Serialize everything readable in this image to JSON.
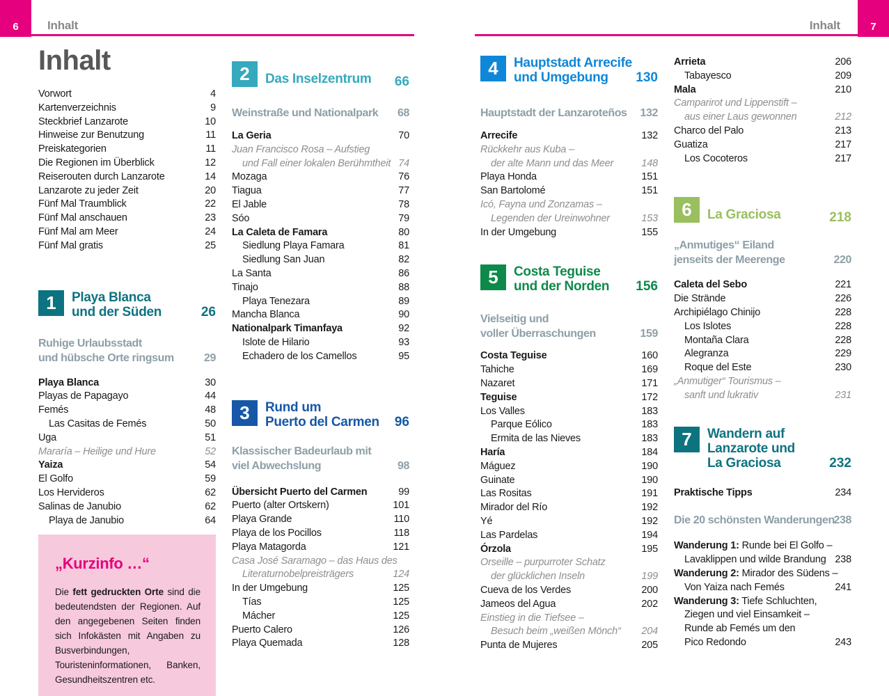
{
  "colors": {
    "brand_pink": "#e5007d",
    "infobox_pink": "#f7c9dc",
    "teal": "#0e7380",
    "cyan": "#36a9bd",
    "royal_blue": "#1658a7",
    "bright_blue": "#0f87d8",
    "green": "#0d8a4a",
    "lime": "#99bf5e",
    "subtitle_gray": "#8d9fa7",
    "italic_gray": "#8e8e8e"
  },
  "header_left": {
    "page_number": "6",
    "label": "Inhalt"
  },
  "header_right": {
    "page_number": "7",
    "label": "Inhalt"
  },
  "page_title": "Inhalt",
  "columns": [
    {
      "blocks": [
        {
          "type": "entries",
          "mt": 17,
          "items": [
            {
              "label": "Vorwort",
              "page": "4"
            },
            {
              "label": "Kartenverzeichnis",
              "page": "9"
            },
            {
              "label": "Steckbrief Lanzarote",
              "page": "10"
            },
            {
              "label": "Hinweise zur Benutzung",
              "page": "11"
            },
            {
              "label": "Preiskategorien",
              "page": "11"
            },
            {
              "label": "Die Regionen im Überblick",
              "page": "12"
            },
            {
              "label": "Reiserouten durch Lanzarote",
              "page": "14"
            },
            {
              "label": "Lanzarote zu jeder Zeit",
              "page": "20"
            },
            {
              "label": "Fünf Mal Traumblick",
              "page": "22"
            },
            {
              "label": "Fünf Mal anschauen",
              "page": "23"
            },
            {
              "label": "Fünf Mal am Meer",
              "page": "24"
            },
            {
              "label": "Fünf Mal gratis",
              "page": "25"
            }
          ]
        },
        {
          "type": "section",
          "mt": 53,
          "num": "1",
          "color": "#0e7380",
          "lines": [
            "Playa Blanca",
            "und der Süden"
          ],
          "page": "26"
        },
        {
          "type": "subtitle",
          "mt": 24,
          "lines": [
            "Ruhige Urlaubsstadt",
            "und hübsche Orte ringsum"
          ],
          "page": "29"
        },
        {
          "type": "entries",
          "mt": 16,
          "items": [
            {
              "label": "Playa Blanca",
              "page": "30",
              "bold": true
            },
            {
              "label": "Playas de Papagayo",
              "page": "44"
            },
            {
              "label": "Femés",
              "page": "48"
            },
            {
              "label": "Las Casitas de Femés",
              "page": "50",
              "indent": true
            },
            {
              "label": "Uga",
              "page": "51"
            },
            {
              "label": "Mararía – Heilige und Hure",
              "page": "52",
              "italic": true
            },
            {
              "label": "Yaiza",
              "page": "54",
              "bold": true
            },
            {
              "label": "El Golfo",
              "page": "59"
            },
            {
              "label": "Los Hervideros",
              "page": "62"
            },
            {
              "label": "Salinas de Janubio",
              "page": "62"
            },
            {
              "label": "Playa de Janubio",
              "page": "64",
              "indent": true
            }
          ]
        },
        {
          "type": "infobox",
          "mt": 10,
          "title": "„Kurzinfo …“",
          "body": [
            {
              "text": "Die "
            },
            {
              "text": "fett gedruckten Orte",
              "bold": true
            },
            {
              "text": " sind die bedeutendsten der Regionen. Auf den angegebenen Seiten finden sich Infokästen mit Angaben zu Busverbindungen, Touristeninformationen, Banken, Gesundheitszentren etc."
            }
          ]
        }
      ]
    },
    {
      "blocks": [
        {
          "type": "section",
          "mt": 33,
          "num": "2",
          "color": "#36a9bd",
          "lines": [
            "Das Inselzentrum"
          ],
          "page": "66"
        },
        {
          "type": "subtitle",
          "mt": 24,
          "lines": [
            "Weinstraße und Nationalpark"
          ],
          "page": "68"
        },
        {
          "type": "entries",
          "mt": 13,
          "items": [
            {
              "label": "La Geria",
              "page": "70",
              "bold": true
            },
            {
              "label": "Juan Francisco Rosa – Aufstieg",
              "italic": true
            },
            {
              "label": "und Fall einer lokalen Berühmtheit",
              "page": "74",
              "italic": true,
              "indent": true
            },
            {
              "label": "Mozaga",
              "page": "76"
            },
            {
              "label": "Tiagua",
              "page": "77"
            },
            {
              "label": "El Jable",
              "page": "78"
            },
            {
              "label": "Sóo",
              "page": "79"
            },
            {
              "label": "La Caleta de Famara",
              "page": "80",
              "bold": true
            },
            {
              "label": "Siedlung Playa Famara",
              "page": "81",
              "indent": true
            },
            {
              "label": "Siedlung San Juan",
              "page": "82",
              "indent": true
            },
            {
              "label": "La Santa",
              "page": "86"
            },
            {
              "label": "Tinajo",
              "page": "88"
            },
            {
              "label": "Playa Tenezara",
              "page": "89",
              "indent": true
            },
            {
              "label": "Mancha Blanca",
              "page": "90"
            },
            {
              "label": "Nationalpark Timanfaya",
              "page": "92",
              "bold": true
            },
            {
              "label": "Islote de Hilario",
              "page": "93",
              "indent": true
            },
            {
              "label": "Echadero de los Camellos",
              "page": "95",
              "indent": true
            }
          ]
        },
        {
          "type": "section",
          "mt": 52,
          "num": "3",
          "color": "#1658a7",
          "lines": [
            "Rund um",
            "Puerto del Carmen"
          ],
          "page": "96"
        },
        {
          "type": "subtitle",
          "mt": 21,
          "lines": [
            "Klassischer Badeurlaub mit",
            "viel Abwechslung"
          ],
          "page": "98"
        },
        {
          "type": "entries",
          "mt": 18,
          "items": [
            {
              "label": "Übersicht Puerto del Carmen",
              "page": "99",
              "bold": true
            },
            {
              "label": "Puerto (alter Ortskern)",
              "page": "101"
            },
            {
              "label": "Playa Grande",
              "page": "110"
            },
            {
              "label": "Playa de los Pocillos",
              "page": "118"
            },
            {
              "label": "Playa Matagorda",
              "page": "121"
            },
            {
              "label": "Casa José Saramago – das Haus des",
              "italic": true
            },
            {
              "label": "Literaturnobelpreisträgers",
              "page": "124",
              "italic": true,
              "indent": true
            },
            {
              "label": "In der Umgebung",
              "page": "125"
            },
            {
              "label": "Tías",
              "page": "125",
              "indent": true
            },
            {
              "label": "Mácher",
              "page": "125",
              "indent": true
            },
            {
              "label": "Puerto Calero",
              "page": "126"
            },
            {
              "label": "Playa Quemada",
              "page": "128"
            }
          ]
        }
      ]
    },
    {
      "blocks": [
        {
          "type": "section",
          "mt": 25,
          "num": "4",
          "color": "#0f87d8",
          "lines": [
            "Hauptstadt Arrecife",
            "und Umgebung"
          ],
          "page": "130"
        },
        {
          "type": "subtitle",
          "mt": 30,
          "lines": [
            "Hauptstadt der Lanzaroteños"
          ],
          "page": "132"
        },
        {
          "type": "entries",
          "mt": 13,
          "items": [
            {
              "label": "Arrecife",
              "page": "132",
              "bold": true
            },
            {
              "label": "Rückkehr aus Kuba –",
              "italic": true
            },
            {
              "label": "der alte Mann und das Meer",
              "page": "148",
              "italic": true,
              "indent": true
            },
            {
              "label": "Playa Honda",
              "page": "151"
            },
            {
              "label": "San Bartolomé",
              "page": "151"
            },
            {
              "label": "Icó, Fayna und Zonzamas –",
              "italic": true
            },
            {
              "label": "Legenden der Ureinwohner",
              "page": "153",
              "italic": true,
              "indent": true
            },
            {
              "label": "In der Umgebung",
              "page": "155"
            }
          ]
        },
        {
          "type": "section",
          "mt": 36,
          "num": "5",
          "color": "#0d8a4a",
          "lines": [
            "Costa Teguise",
            "und der Norden"
          ],
          "page": "156"
        },
        {
          "type": "subtitle",
          "mt": 26,
          "lines": [
            "Vielseitig und",
            "voller Überraschungen"
          ],
          "page": "159"
        },
        {
          "type": "entries",
          "mt": 12,
          "items": [
            {
              "label": "Costa Teguise",
              "page": "160",
              "bold": true
            },
            {
              "label": "Tahiche",
              "page": "169"
            },
            {
              "label": "Nazaret",
              "page": "171"
            },
            {
              "label": "Teguise",
              "page": "172",
              "bold": true
            },
            {
              "label": "Los Valles",
              "page": "183"
            },
            {
              "label": "Parque Eólico",
              "page": "183",
              "indent": true
            },
            {
              "label": "Ermita de las Nieves",
              "page": "183",
              "indent": true
            },
            {
              "label": "Haría",
              "page": "184",
              "bold": true
            },
            {
              "label": "Máguez",
              "page": "190"
            },
            {
              "label": "Guinate",
              "page": "190"
            },
            {
              "label": "Las Rositas",
              "page": "191"
            },
            {
              "label": "Mirador del Río",
              "page": "192"
            },
            {
              "label": "Yé",
              "page": "192"
            },
            {
              "label": "Las Pardelas",
              "page": "194"
            },
            {
              "label": "Órzola",
              "page": "195",
              "bold": true
            },
            {
              "label": "Orseille – purpurroter Schatz",
              "italic": true
            },
            {
              "label": "der glücklichen Inseln",
              "page": "199",
              "italic": true,
              "indent": true
            },
            {
              "label": "Cueva de los Verdes",
              "page": "200"
            },
            {
              "label": "Jameos del Agua",
              "page": "202"
            },
            {
              "label": "Einstieg in die Tiefsee –",
              "italic": true
            },
            {
              "label": "Besuch beim „weißen Mönch“",
              "page": "204",
              "italic": true,
              "indent": true
            },
            {
              "label": "Punta de Mujeres",
              "page": "205"
            }
          ]
        }
      ]
    },
    {
      "blocks": [
        {
          "type": "entries",
          "mt": 25,
          "items": [
            {
              "label": "Arrieta",
              "page": "206",
              "bold": true
            },
            {
              "label": "Tabayesco",
              "page": "209",
              "indent": true
            },
            {
              "label": "Mala",
              "page": "210",
              "bold": true
            },
            {
              "label": "Camparirot und Lippenstift –",
              "italic": true
            },
            {
              "label": "aus einer Laus gewonnen",
              "page": "212",
              "italic": true,
              "indent": true
            },
            {
              "label": "Charco del Palo",
              "page": "213"
            },
            {
              "label": "Guatiza",
              "page": "217"
            },
            {
              "label": "Los Cocoteros",
              "page": "217",
              "indent": true
            }
          ]
        },
        {
          "type": "section",
          "mt": 45,
          "num": "6",
          "color": "#99bf5e",
          "lines": [
            "La Graciosa"
          ],
          "page": "218"
        },
        {
          "type": "subtitle",
          "mt": 19,
          "lines": [
            "„Anmutiges“ Eiland",
            "jenseits der Meerenge"
          ],
          "page": "220"
        },
        {
          "type": "entries",
          "mt": 16,
          "items": [
            {
              "label": "Caleta del Sebo",
              "page": "221",
              "bold": true
            },
            {
              "label": "Die Strände",
              "page": "226"
            },
            {
              "label": "Archipiélago Chinijo",
              "page": "228"
            },
            {
              "label": "Los Islotes",
              "page": "228",
              "indent": true
            },
            {
              "label": "Montaña Clara",
              "page": "228",
              "indent": true
            },
            {
              "label": "Alegranza",
              "page": "229",
              "indent": true
            },
            {
              "label": "Roque del Este",
              "page": "230",
              "indent": true
            },
            {
              "label": "„Anmutiger“ Tourismus –",
              "italic": true
            },
            {
              "label": "sanft und lukrativ",
              "page": "231",
              "italic": true,
              "indent": true
            }
          ]
        },
        {
          "type": "section",
          "mt": 34,
          "num": "7",
          "color": "#0e7380",
          "lines": [
            "Wandern auf",
            "Lanzarote und",
            "La Graciosa"
          ],
          "page": "232"
        },
        {
          "type": "entries",
          "mt": 23,
          "items": [
            {
              "label": "Praktische Tipps",
              "page": "234",
              "bold": true
            }
          ]
        },
        {
          "type": "subtitle",
          "mt": 19,
          "lines": [
            "Die 20 schönsten Wanderungen"
          ],
          "page": "238"
        },
        {
          "type": "entries",
          "mt": 17,
          "items": [
            {
              "prefix": "Wanderung 1:",
              "label": " Runde bei El Golfo –"
            },
            {
              "label": "Lavaklippen und wilde Brandung",
              "page": "238",
              "indent": true
            },
            {
              "prefix": "Wanderung 2:",
              "label": " Mirador des Südens –"
            },
            {
              "label": "Von Yaiza nach Femés",
              "page": "241",
              "indent": true
            },
            {
              "prefix": "Wanderung 3:",
              "label": " Tiefe Schluchten,"
            },
            {
              "label": "Ziegen und viel Einsamkeit –",
              "indent": true
            },
            {
              "label": "Runde ab Femés um den",
              "indent": true
            },
            {
              "label": "Pico Redondo",
              "page": "243",
              "indent": true
            }
          ]
        }
      ]
    }
  ]
}
